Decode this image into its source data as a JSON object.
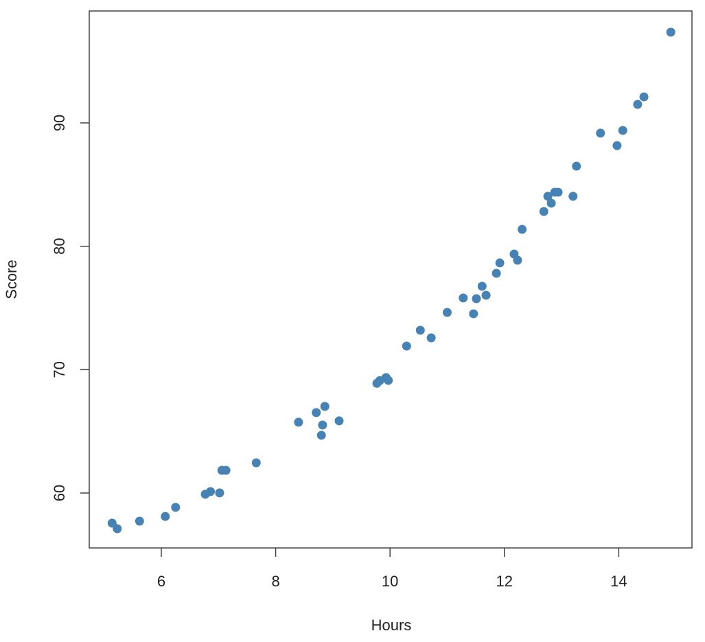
{
  "chart_data": {
    "type": "scatter",
    "x_label": "Hours",
    "y_label": "Score",
    "color": "#4682b4",
    "x": [
      5.14,
      5.23,
      5.62,
      6.07,
      6.25,
      6.77,
      6.86,
      7.02,
      7.06,
      7.13,
      7.66,
      8.4,
      8.71,
      8.86,
      8.82,
      8.8,
      9.11,
      9.77,
      9.82,
      9.93,
      9.97,
      10.29,
      10.53,
      10.72,
      11.0,
      11.28,
      11.46,
      11.51,
      11.61,
      11.68,
      11.86,
      11.92,
      12.17,
      12.23,
      12.31,
      12.69,
      12.76,
      12.82,
      12.88,
      12.94,
      13.2,
      13.26,
      13.68,
      13.97,
      14.07,
      14.33,
      14.44,
      14.91
    ],
    "values": [
      57.56,
      57.11,
      57.72,
      58.1,
      58.84,
      59.9,
      60.12,
      60.01,
      61.84,
      61.84,
      62.45,
      65.74,
      66.52,
      67.02,
      65.51,
      64.68,
      65.85,
      68.89,
      69.11,
      69.36,
      69.13,
      71.91,
      73.19,
      72.58,
      74.64,
      75.81,
      74.53,
      75.75,
      76.76,
      76.03,
      77.81,
      78.65,
      79.37,
      78.87,
      81.37,
      82.82,
      84.05,
      83.49,
      84.38,
      84.38,
      84.05,
      86.49,
      89.17,
      88.16,
      89.39,
      91.5,
      92.11,
      97.35
    ],
    "xlim": [
      4.74,
      15.28
    ],
    "ylim": [
      55.55,
      99.07
    ],
    "xticks": [
      6,
      8,
      10,
      12,
      14
    ],
    "yticks": [
      60,
      70,
      80,
      90
    ],
    "grid": false
  }
}
